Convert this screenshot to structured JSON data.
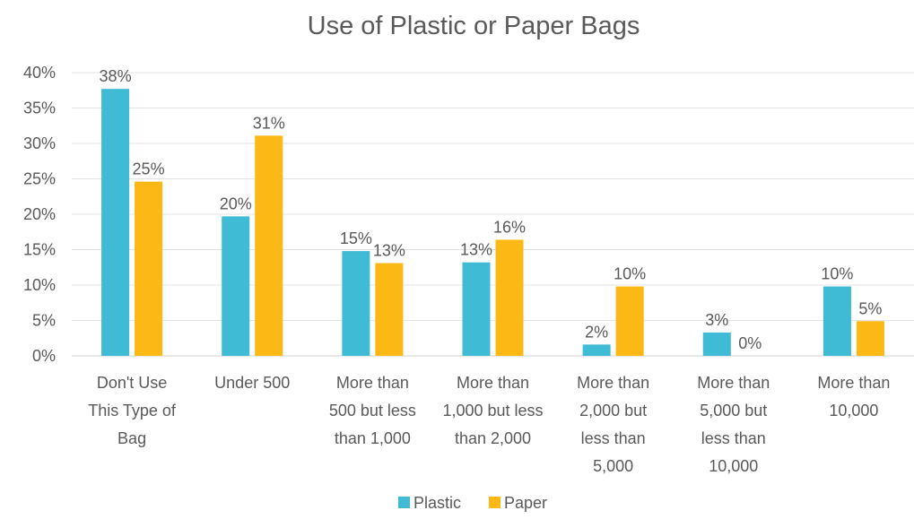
{
  "chart_data": {
    "type": "bar",
    "title": "Use of Plastic or Paper Bags",
    "xlabel": "",
    "ylabel": "",
    "ylim": [
      0,
      40
    ],
    "y_ticks": [
      "0%",
      "5%",
      "10%",
      "15%",
      "20%",
      "25%",
      "30%",
      "35%",
      "40%"
    ],
    "y_tick_values": [
      0,
      5,
      10,
      15,
      20,
      25,
      30,
      35,
      40
    ],
    "grid": true,
    "legend": "bottom",
    "categories": [
      [
        "Don't Use",
        "This Type of",
        "Bag"
      ],
      [
        "Under 500"
      ],
      [
        "More than",
        "500 but less",
        "than 1,000"
      ],
      [
        "More than",
        "1,000 but less",
        "than 2,000"
      ],
      [
        "More than",
        "2,000 but",
        "less than",
        "5,000"
      ],
      [
        "More than",
        "5,000 but",
        "less than",
        "10,000"
      ],
      [
        "More than",
        "10,000"
      ]
    ],
    "series": [
      {
        "name": "Plastic",
        "color": "#3fbbd5",
        "values": [
          37.7,
          19.7,
          14.8,
          13.2,
          1.6,
          3.3,
          9.8
        ],
        "labels": [
          "38%",
          "20%",
          "15%",
          "13%",
          "2%",
          "3%",
          "10%"
        ]
      },
      {
        "name": "Paper",
        "color": "#fcb814",
        "values": [
          24.6,
          31.1,
          13.1,
          16.4,
          9.8,
          0,
          4.9
        ],
        "labels": [
          "25%",
          "31%",
          "13%",
          "16%",
          "10%",
          "0%",
          "5%"
        ]
      }
    ]
  }
}
